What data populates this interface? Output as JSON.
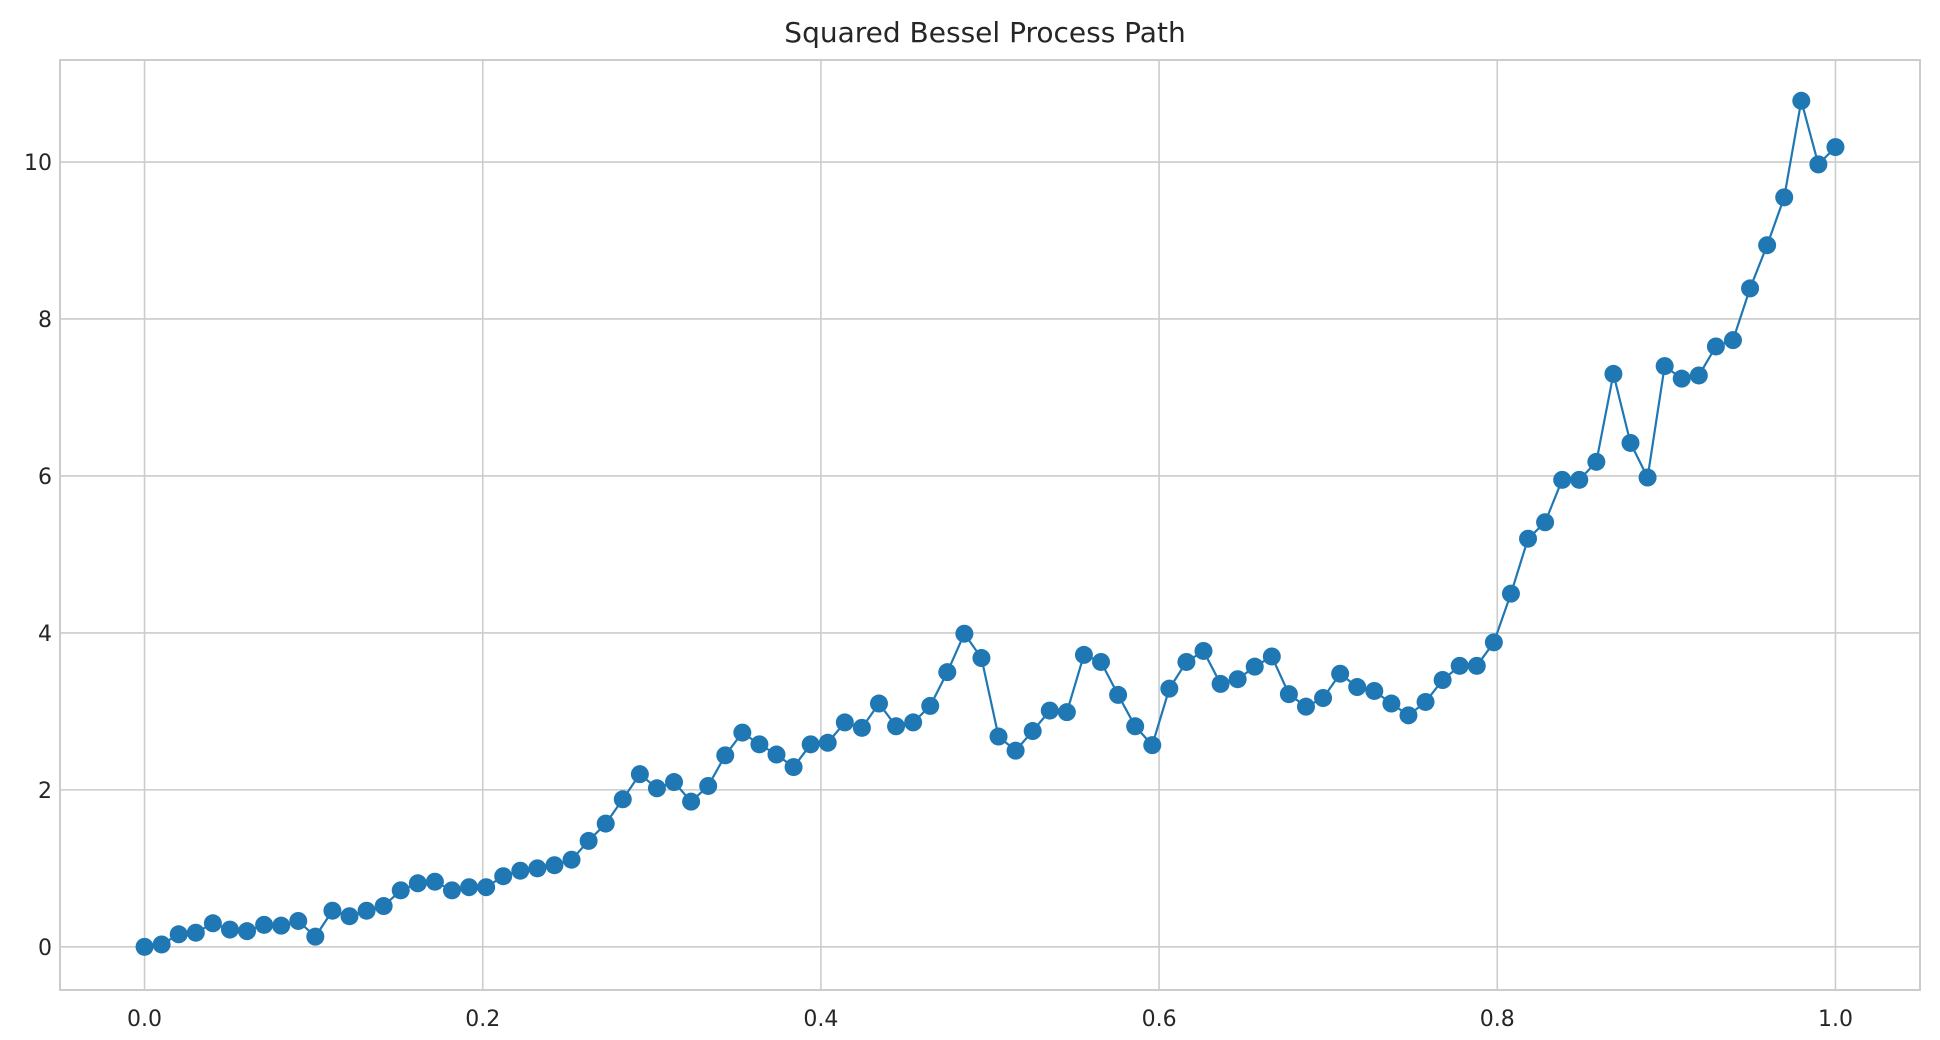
{
  "chart_data": {
    "type": "line",
    "title": "Squared Bessel Process Path",
    "xlabel": "",
    "ylabel": "",
    "xlim": [
      -0.05,
      1.05
    ],
    "ylim": [
      -0.55,
      11.3
    ],
    "grid": true,
    "x_ticks": [
      0.0,
      0.2,
      0.4,
      0.6,
      0.8,
      1.0
    ],
    "x_tick_labels": [
      "0.0",
      "0.2",
      "0.4",
      "0.6",
      "0.8",
      "1.0"
    ],
    "y_ticks": [
      0,
      2,
      4,
      6,
      8,
      10
    ],
    "y_tick_labels": [
      "0",
      "2",
      "4",
      "6",
      "8",
      "10"
    ],
    "marker": "circle",
    "colors": {
      "series": "#1f77b4",
      "grid": "#cccccc",
      "text": "#262626"
    },
    "series": [
      {
        "x_start": 0.0,
        "x_end": 1.0,
        "values": [
          0.0,
          0.03,
          0.16,
          0.18,
          0.3,
          0.22,
          0.2,
          0.28,
          0.27,
          0.33,
          0.13,
          0.46,
          0.39,
          0.46,
          0.52,
          0.72,
          0.81,
          0.83,
          0.72,
          0.76,
          0.76,
          0.9,
          0.97,
          1.0,
          1.04,
          1.11,
          1.35,
          1.57,
          1.88,
          2.2,
          2.02,
          2.1,
          1.85,
          2.05,
          2.44,
          2.73,
          2.58,
          2.45,
          2.29,
          2.58,
          2.6,
          2.86,
          2.79,
          3.1,
          2.81,
          2.86,
          3.07,
          3.5,
          3.99,
          3.68,
          2.68,
          2.5,
          2.75,
          3.01,
          2.99,
          3.72,
          3.63,
          3.21,
          2.81,
          2.57,
          3.29,
          3.63,
          3.77,
          3.35,
          3.41,
          3.57,
          3.7,
          3.22,
          3.06,
          3.17,
          3.48,
          3.31,
          3.26,
          3.1,
          2.95,
          3.12,
          3.4,
          3.58,
          3.58,
          3.88,
          4.5,
          5.2,
          5.41,
          5.95,
          5.95,
          6.18,
          7.3,
          6.42,
          5.98,
          7.4,
          7.24,
          7.28,
          7.65,
          7.73,
          8.39,
          8.94,
          9.55,
          10.78,
          9.97,
          10.19
        ]
      }
    ]
  }
}
